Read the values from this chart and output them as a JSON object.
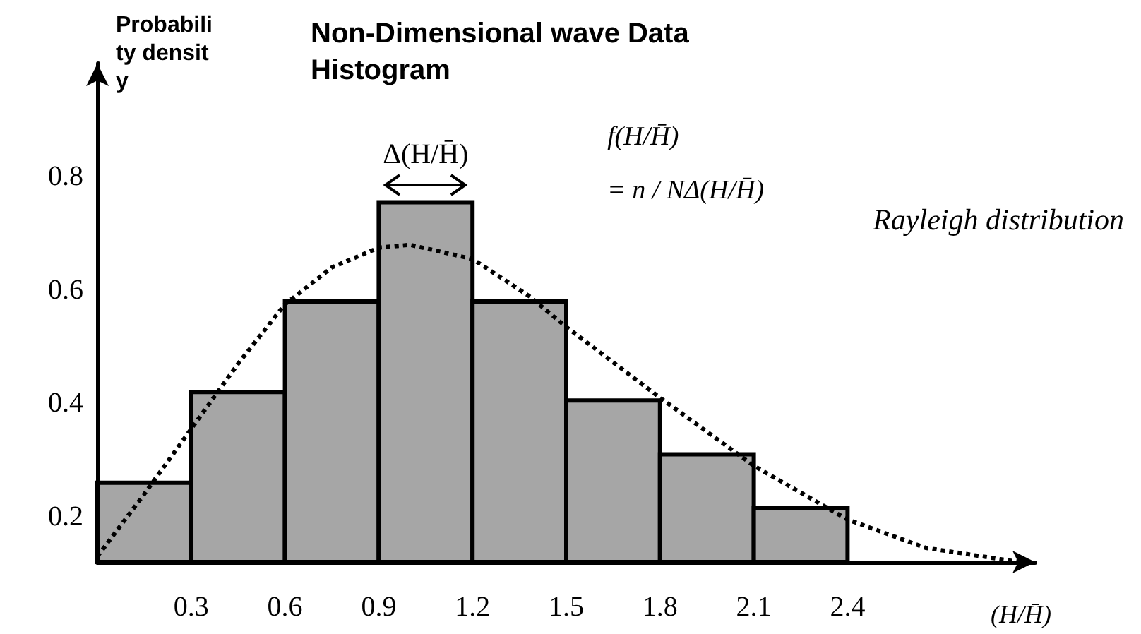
{
  "chart_data": {
    "type": "histogram",
    "title": "Non-Dimensional wave Data Histogram",
    "ylabel": "Probability density",
    "xlabel": "(H/H̄)",
    "xlim": [
      0,
      3.0
    ],
    "ylim": [
      0.12,
      1.0
    ],
    "xticks": [
      0.3,
      0.6,
      0.9,
      1.2,
      1.5,
      1.8,
      2.1,
      2.4
    ],
    "yticks": [
      0.2,
      0.4,
      0.6,
      0.8
    ],
    "annotations": [
      "Δ(H/H̄)",
      "f(H/H̄)\n= n / NΔ(H/H̄)"
    ],
    "series": [
      {
        "color": "#a6a6a6",
        "bins": [
          0,
          0.3,
          0.6,
          0.9,
          1.2,
          1.5,
          1.8,
          2.1,
          2.4
        ],
        "values": [
          0.26,
          0.42,
          0.58,
          0.755,
          0.58,
          0.405,
          0.31,
          0.215
        ]
      },
      {
        "type": "line",
        "name": "Rayleigh distribution",
        "color": "#000000",
        "line_style": "dotted",
        "marker": "none",
        "x": [
          0,
          0.15,
          0.3,
          0.45,
          0.6,
          0.75,
          0.9,
          1.0,
          1.2,
          1.38,
          1.5,
          1.8,
          2.1,
          2.4,
          2.65,
          2.95
        ],
        "values": [
          0.13,
          0.24,
          0.355,
          0.47,
          0.575,
          0.64,
          0.675,
          0.68,
          0.655,
          0.59,
          0.535,
          0.41,
          0.29,
          0.195,
          0.145,
          0.12
        ]
      }
    ]
  }
}
